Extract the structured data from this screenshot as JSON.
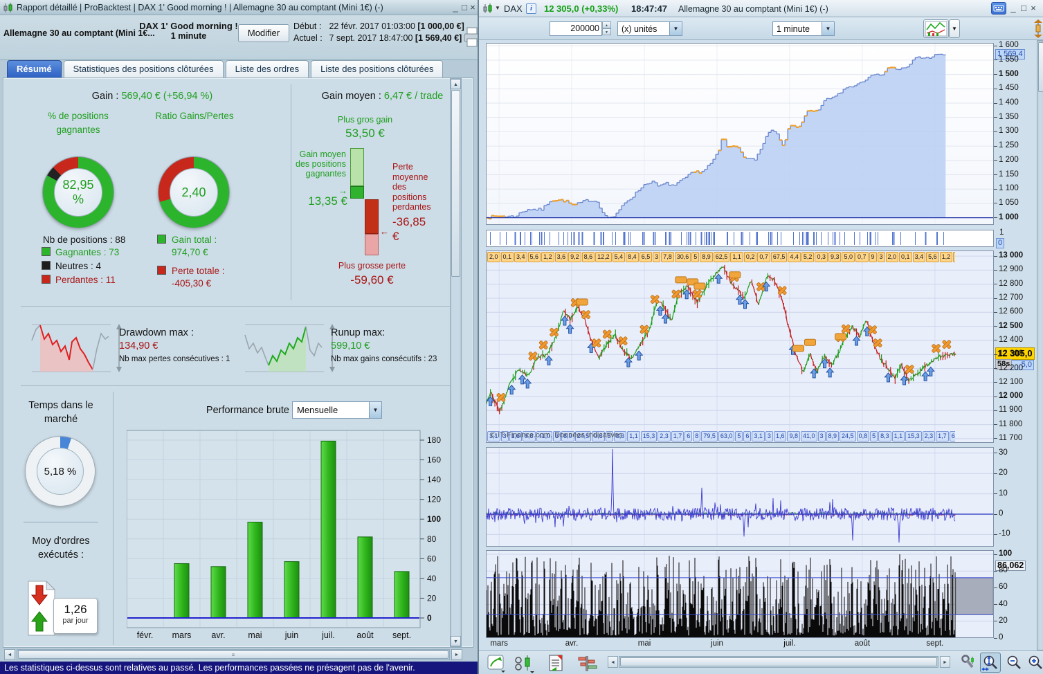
{
  "window_controls": {
    "minimize": "_",
    "maximize": "□",
    "close": "×"
  },
  "icons": {
    "arrow_left": "◄",
    "arrow_right": "►",
    "arrow_up": "▲",
    "arrow_down": "▼",
    "caret_down": "▼",
    "grip": "≡",
    "arrow_to_right": "→",
    "arrow_to_left": "←",
    "info": "i"
  },
  "left_window": {
    "title": "Rapport détaillé | ProBacktest | DAX 1' Good morning ! | Allemagne 30 au comptant (Mini 1€) (-)",
    "header": {
      "instrument": "Allemagne 30 au comptant (Mini 1€...",
      "strategy": "DAX 1' Good morning !",
      "timeframe": "1 minute",
      "modify": "Modifier",
      "debut_label": "Début :",
      "debut_value": "22 févr. 2017 01:03:00",
      "debut_equity": "[1 000,00 €]",
      "actuel_label": "Actuel :",
      "actuel_value": "7 sept. 2017 18:47:00",
      "actuel_equity": "[1 569,40 €]"
    },
    "tabs": [
      "Résumé",
      "Statistiques des positions clôturées",
      "Liste des ordres",
      "Liste des positions clôturées"
    ],
    "summary": {
      "gain_label": "Gain :",
      "gain_value": "569,40 € (+56,94 %)",
      "pct_title": "% de positions gagnantes",
      "pct_value": "82,95 %",
      "ratio_title": "Ratio Gains/Pertes",
      "ratio_value": "2,40",
      "nb_positions": "Nb de positions : 88",
      "gagnantes": "Gagnantes : 73",
      "neutres": "Neutres : 4",
      "perdantes": "Perdantes : 11",
      "gain_total_label": "Gain total :",
      "gain_total_value": "974,70 €",
      "perte_totale_label": "Perte totale :",
      "perte_totale_value": "-405,30 €"
    },
    "gain_moyen": {
      "title_label": "Gain moyen :",
      "title_value": "6,47 € / trade",
      "plus_gros_gain_label": "Plus gros gain",
      "plus_gros_gain_value": "53,50 €",
      "gain_moyen_label": "Gain moyen des positions gagnantes",
      "gain_moyen_value": "13,35 €",
      "perte_moyenne_label": "Perte moyenne des positions perdantes",
      "perte_moyenne_value": "-36,85 €",
      "plus_grosse_perte_label": "Plus grosse perte",
      "plus_grosse_perte_value": "-59,60 €"
    },
    "drawdown": {
      "label": "Drawdown max :",
      "value": "134,90 €",
      "sub": "Nb max pertes consécutives : 1"
    },
    "runup": {
      "label": "Runup max:",
      "value": "599,10 €",
      "sub": "Nb max gains consécutifs : 23"
    },
    "temps_marche": {
      "title": "Temps dans le marché",
      "value": "5,18 %"
    },
    "moy_ordres": {
      "title": "Moy d'ordres exécutés :",
      "value": "1,26",
      "unit": "par jour"
    },
    "perf": {
      "title": "Performance brute",
      "period": "Mensuelle"
    },
    "status": "Les statistiques ci-dessus sont relatives au passé. Les performances passées ne présagent pas de l'avenir."
  },
  "right_window": {
    "symbol": "DAX",
    "price": "12 305,0 (+0,33%)",
    "time": "18:47:47",
    "instrument": "Allemagne 30 au comptant (Mini 1€) (-)",
    "toolbar": {
      "quantity": "200000",
      "units": "(x) unités",
      "timeframe": "1 minute"
    },
    "months": [
      "mars",
      "avr.",
      "mai",
      "juin",
      "juil.",
      "août",
      "sept."
    ],
    "watermark": "© IT-Finance.com. Données indicatives"
  },
  "chart_data": [
    {
      "id": "monthly_performance",
      "type": "bar",
      "title": "Performance brute",
      "period": "Mensuelle",
      "categories": [
        "févr.",
        "mars",
        "avr.",
        "mai",
        "juin",
        "juil.",
        "août",
        "sept."
      ],
      "values": [
        0,
        55,
        52,
        97,
        57,
        179,
        82,
        47
      ],
      "ylim": [
        0,
        190
      ],
      "yticks": [
        {
          "v": 0,
          "label": "0",
          "bold": true
        },
        {
          "v": 20,
          "label": "20"
        },
        {
          "v": 40,
          "label": "40"
        },
        {
          "v": 60,
          "label": "60"
        },
        {
          "v": 80,
          "label": "80"
        },
        {
          "v": 100,
          "label": "100",
          "bold": true
        },
        {
          "v": 120,
          "label": "120"
        },
        {
          "v": 140,
          "label": "140"
        },
        {
          "v": 160,
          "label": "160"
        },
        {
          "v": 180,
          "label": "180"
        }
      ]
    },
    {
      "id": "equity_curve",
      "type": "area",
      "title": "Courbe de gains (équité)",
      "ylim": [
        975,
        1610
      ],
      "baseline": 1000,
      "data_end": 0.905,
      "start_value": 1000,
      "end_value": 1569.4,
      "current_label": "1 569,4",
      "yticks": [
        {
          "v": 1600,
          "label": "1 600"
        },
        {
          "v": 1550,
          "label": "1 550"
        },
        {
          "v": 1500,
          "label": "1 500",
          "bold": true
        },
        {
          "v": 1450,
          "label": "1 450"
        },
        {
          "v": 1400,
          "label": "1 400"
        },
        {
          "v": 1350,
          "label": "1 350"
        },
        {
          "v": 1300,
          "label": "1 300"
        },
        {
          "v": 1250,
          "label": "1 250"
        },
        {
          "v": 1200,
          "label": "1 200"
        },
        {
          "v": 1150,
          "label": "1 150"
        },
        {
          "v": 1100,
          "label": "1 100"
        },
        {
          "v": 1050,
          "label": "1 050"
        },
        {
          "v": 1000,
          "label": "1 000",
          "bold": true
        }
      ],
      "anchors": [
        [
          0,
          1000
        ],
        [
          0.03,
          1006
        ],
        [
          0.06,
          1004
        ],
        [
          0.09,
          1030
        ],
        [
          0.12,
          1028
        ],
        [
          0.14,
          1062
        ],
        [
          0.17,
          1060
        ],
        [
          0.19,
          1042
        ],
        [
          0.22,
          1062
        ],
        [
          0.24,
          1058
        ],
        [
          0.26,
          1002
        ],
        [
          0.28,
          1004
        ],
        [
          0.3,
          1052
        ],
        [
          0.32,
          1076
        ],
        [
          0.34,
          1112
        ],
        [
          0.36,
          1128
        ],
        [
          0.375,
          1108
        ],
        [
          0.39,
          1120
        ],
        [
          0.41,
          1112
        ],
        [
          0.43,
          1136
        ],
        [
          0.45,
          1158
        ],
        [
          0.47,
          1162
        ],
        [
          0.49,
          1192
        ],
        [
          0.505,
          1228
        ],
        [
          0.515,
          1288
        ],
        [
          0.525,
          1242
        ],
        [
          0.54,
          1252
        ],
        [
          0.55,
          1246
        ],
        [
          0.565,
          1202
        ],
        [
          0.585,
          1206
        ],
        [
          0.6,
          1248
        ],
        [
          0.615,
          1302
        ],
        [
          0.63,
          1298
        ],
        [
          0.645,
          1248
        ],
        [
          0.66,
          1322
        ],
        [
          0.68,
          1318
        ],
        [
          0.7,
          1372
        ],
        [
          0.72,
          1368
        ],
        [
          0.74,
          1416
        ],
        [
          0.76,
          1422
        ],
        [
          0.78,
          1452
        ],
        [
          0.8,
          1462
        ],
        [
          0.82,
          1478
        ],
        [
          0.84,
          1506
        ],
        [
          0.855,
          1492
        ],
        [
          0.875,
          1526
        ],
        [
          0.895,
          1518
        ],
        [
          0.915,
          1522
        ],
        [
          0.935,
          1562
        ],
        [
          0.955,
          1556
        ],
        [
          0.975,
          1566
        ],
        [
          1,
          1569.4
        ]
      ]
    },
    {
      "id": "in_market_band",
      "type": "ticks",
      "labels": {
        "one": "1",
        "zero": "0"
      },
      "data_end": 0.905
    },
    {
      "id": "price_dax",
      "type": "line",
      "current": 12305.0,
      "current_label": "12 305,0",
      "countdown": "58s",
      "partial_label": "5,0",
      "ylim": [
        11670,
        13040
      ],
      "data_end": 0.925,
      "yticks": [
        {
          "v": 13000,
          "label": "13 000",
          "bold": true
        },
        {
          "v": 12900,
          "label": "12 900"
        },
        {
          "v": 12800,
          "label": "12 800"
        },
        {
          "v": 12700,
          "label": "12 700"
        },
        {
          "v": 12600,
          "label": "12 600"
        },
        {
          "v": 12500,
          "label": "12 500",
          "bold": true
        },
        {
          "v": 12400,
          "label": "12 400"
        },
        {
          "v": 12300,
          "label": "12 300"
        },
        {
          "v": 12200,
          "label": "12 200"
        },
        {
          "v": 12100,
          "label": "12 100"
        },
        {
          "v": 12000,
          "label": "12 000",
          "bold": true
        },
        {
          "v": 11900,
          "label": "11 900"
        },
        {
          "v": 11800,
          "label": "11 800"
        },
        {
          "v": 11700,
          "label": "11 700"
        }
      ],
      "anchors": [
        [
          0,
          11950
        ],
        [
          0.01,
          12030
        ],
        [
          0.03,
          11890
        ],
        [
          0.05,
          12080
        ],
        [
          0.07,
          12190
        ],
        [
          0.09,
          12150
        ],
        [
          0.11,
          12280
        ],
        [
          0.13,
          12300
        ],
        [
          0.15,
          12430
        ],
        [
          0.165,
          12610
        ],
        [
          0.18,
          12550
        ],
        [
          0.195,
          12640
        ],
        [
          0.21,
          12560
        ],
        [
          0.225,
          12390
        ],
        [
          0.24,
          12280
        ],
        [
          0.26,
          12380
        ],
        [
          0.275,
          12440
        ],
        [
          0.29,
          12340
        ],
        [
          0.31,
          12270
        ],
        [
          0.33,
          12380
        ],
        [
          0.35,
          12490
        ],
        [
          0.365,
          12700
        ],
        [
          0.38,
          12630
        ],
        [
          0.395,
          12540
        ],
        [
          0.41,
          12730
        ],
        [
          0.43,
          12790
        ],
        [
          0.45,
          12670
        ],
        [
          0.47,
          12790
        ],
        [
          0.49,
          12880
        ],
        [
          0.505,
          12930
        ],
        [
          0.52,
          12820
        ],
        [
          0.535,
          12760
        ],
        [
          0.55,
          12700
        ],
        [
          0.565,
          12830
        ],
        [
          0.58,
          12650
        ],
        [
          0.6,
          12870
        ],
        [
          0.615,
          12820
        ],
        [
          0.63,
          12700
        ],
        [
          0.645,
          12480
        ],
        [
          0.66,
          12300
        ],
        [
          0.675,
          12170
        ],
        [
          0.69,
          12300
        ],
        [
          0.705,
          12180
        ],
        [
          0.72,
          12290
        ],
        [
          0.735,
          12230
        ],
        [
          0.75,
          12300
        ],
        [
          0.765,
          12420
        ],
        [
          0.78,
          12500
        ],
        [
          0.795,
          12430
        ],
        [
          0.81,
          12550
        ],
        [
          0.825,
          12380
        ],
        [
          0.84,
          12270
        ],
        [
          0.855,
          12200
        ],
        [
          0.87,
          12130
        ],
        [
          0.885,
          12230
        ],
        [
          0.9,
          12110
        ],
        [
          0.93,
          12200
        ],
        [
          0.96,
          12280
        ],
        [
          1,
          12305
        ]
      ],
      "square_markers": [
        0.205,
        0.415,
        0.44,
        0.455,
        0.53,
        0.665,
        0.69,
        0.755
      ],
      "trade_labels_top": [
        "2,0",
        "0,1",
        "3,4",
        "5,6",
        "1,2",
        "3,6",
        "9,2",
        "8,6",
        "12,2",
        "5,4",
        "8,4",
        "6,5",
        "3",
        "7,8",
        "30,6",
        "5",
        "8,9",
        "62,5",
        "1,1",
        "0,2",
        "0,7",
        "67,5",
        "4,4",
        "5,2",
        "0,3",
        "9,3",
        "5,0",
        "0,7",
        "9",
        "3"
      ],
      "trade_labels_bottom": [
        "3,1",
        "3",
        "1,6",
        "9,8",
        "41,0",
        "3",
        "8,9",
        "24,5",
        "0,8",
        "5",
        "8,3",
        "1,1",
        "15,3",
        "2,3",
        "1,7",
        "6",
        "8",
        "79,5",
        "63,0",
        "5",
        "6"
      ]
    },
    {
      "id": "oscillator",
      "type": "line",
      "ylim": [
        -16,
        33
      ],
      "data_end": 0.925,
      "yticks": [
        {
          "v": 30,
          "label": "30"
        },
        {
          "v": 20,
          "label": "20"
        },
        {
          "v": 10,
          "label": "10"
        },
        {
          "v": 0,
          "label": "0"
        },
        {
          "v": -10,
          "label": "-10"
        }
      ],
      "spikes": [
        [
          0.27,
          32
        ],
        [
          0.46,
          13
        ],
        [
          0.55,
          -11
        ],
        [
          0.78,
          -13
        ],
        [
          0.88,
          -14
        ]
      ]
    },
    {
      "id": "volume",
      "type": "bar",
      "ylim": [
        0,
        105
      ],
      "data_end": 0.925,
      "current": 86.062,
      "current_label": "86,062",
      "hlines": [
        72,
        28
      ],
      "yticks": [
        {
          "v": 100,
          "label": "100",
          "bold": true
        },
        {
          "v": 80,
          "label": "80"
        },
        {
          "v": 60,
          "label": "60"
        },
        {
          "v": 40,
          "label": "40"
        },
        {
          "v": 20,
          "label": "20"
        },
        {
          "v": 0,
          "label": "0"
        }
      ]
    }
  ]
}
